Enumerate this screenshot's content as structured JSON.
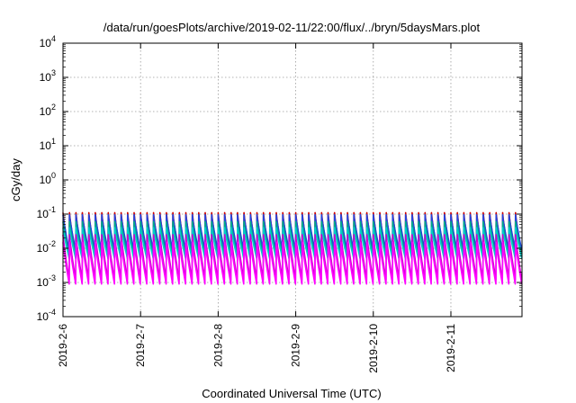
{
  "chart_data": {
    "type": "line",
    "title": "/data/run/goesPlots/archive/2019-02-11/22:00/flux/../bryn/5daysMars.plot",
    "xlabel": "Coordinated Universal Time (UTC)",
    "ylabel": "cGy/day",
    "y_scale": "log",
    "ylim": [
      0.0001,
      10000
    ],
    "xlim": [
      "2019-02-06",
      "2019-02-11T22:00"
    ],
    "y_ticks": [
      {
        "base": "10",
        "exp": "-4"
      },
      {
        "base": "10",
        "exp": "-3"
      },
      {
        "base": "10",
        "exp": "-2"
      },
      {
        "base": "10",
        "exp": "-1"
      },
      {
        "base": "10",
        "exp": "0"
      },
      {
        "base": "10",
        "exp": "1"
      },
      {
        "base": "10",
        "exp": "2"
      },
      {
        "base": "10",
        "exp": "3"
      },
      {
        "base": "10",
        "exp": "4"
      }
    ],
    "x_ticks": [
      "2019-2-6",
      "2019-2-7",
      "2019-2-8",
      "2019-2-9",
      "2019-2-10",
      "2019-2-11"
    ],
    "grid": true,
    "cycles_per_day": 12,
    "series": [
      {
        "color": "#cc0000",
        "peak": 0.11,
        "trough": 0.0065
      },
      {
        "color": "#2244dd",
        "peak": 0.095,
        "trough": 0.009
      },
      {
        "color": "#00aa88",
        "peak": 0.06,
        "trough": 0.006
      },
      {
        "color": "#00cccc",
        "peak": 0.04,
        "trough": 0.005
      },
      {
        "color": "#cc00cc",
        "peak": 0.025,
        "trough": 0.0012
      },
      {
        "color": "#ff00ff",
        "peak": 0.015,
        "trough": 0.0009
      }
    ]
  }
}
